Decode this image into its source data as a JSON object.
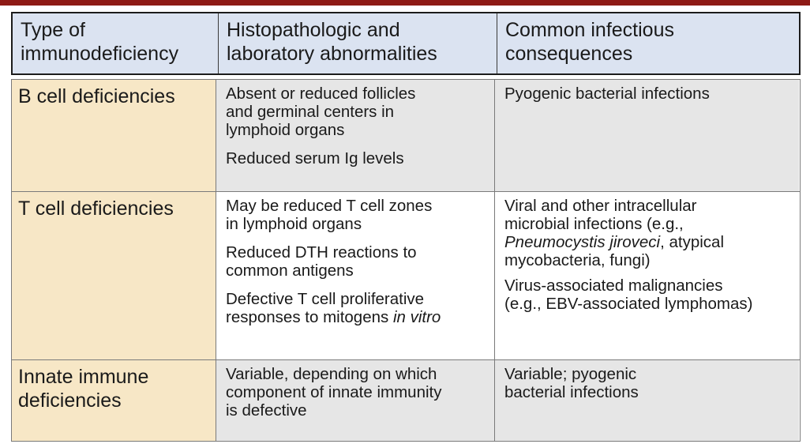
{
  "header": {
    "col1": [
      "Type of",
      "immunodeficiency"
    ],
    "col2": [
      "Histopathologic and",
      "laboratory abnormalities"
    ],
    "col3": [
      "Common infectious",
      "consequences"
    ]
  },
  "rows": [
    {
      "type": "B cell deficiencies",
      "abnormalities": [
        [
          "Absent or reduced follicles",
          "and germinal centers in",
          "lymphoid organs"
        ],
        [
          "Reduced serum Ig levels"
        ]
      ],
      "consequences": [
        [
          "Pyogenic bacterial infections"
        ]
      ]
    },
    {
      "type": "T cell deficiencies",
      "abnormalities": [
        [
          "May be reduced T cell zones",
          "in lymphoid organs"
        ],
        [
          "Reduced DTH reactions to",
          "common antigens"
        ],
        [
          "Defective T cell proliferative"
        ]
      ],
      "abnormalities_last_line": {
        "prefix": "responses to mitogens ",
        "italic": "in vitro"
      },
      "consequences": [
        [
          "Viral and other intracellular",
          "microbial infections (e.g.,"
        ]
      ],
      "consequences_mixed_line": {
        "italic": "Pneumocystis jiroveci",
        "suffix": ", atypical"
      },
      "consequences_after": [
        "mycobacteria, fungi)"
      ],
      "consequences_second": [
        "Virus-associated malignancies",
        "(e.g., EBV-associated lymphomas)"
      ]
    },
    {
      "type_lines": [
        "Innate immune",
        "deficiencies"
      ],
      "abnormalities": [
        [
          "Variable, depending on which",
          "component of innate immunity",
          "is defective"
        ]
      ],
      "consequences": [
        [
          "Variable; pyogenic",
          "bacterial infections"
        ]
      ]
    }
  ]
}
